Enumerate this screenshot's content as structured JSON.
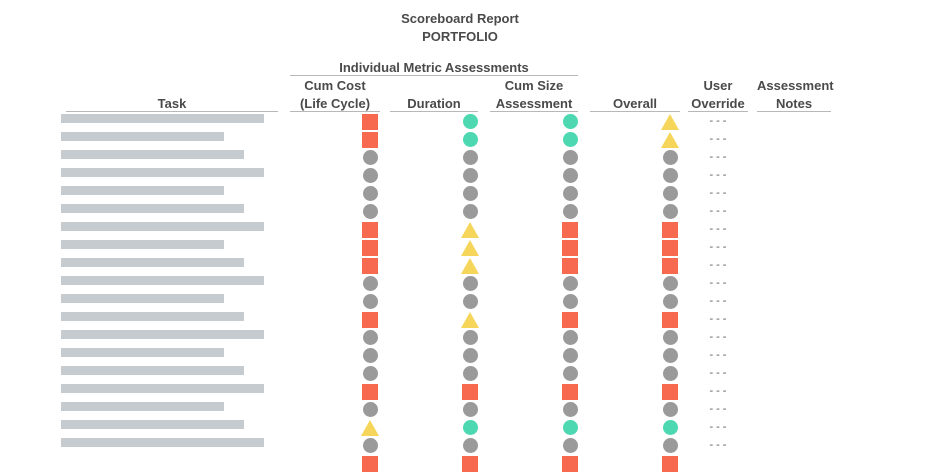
{
  "report": {
    "title": "Scoreboard Report",
    "subtitle": "PORTFOLIO"
  },
  "headers": {
    "group": "Individual Metric Assessments",
    "task": "Task",
    "cum_cost": [
      "Cum Cost",
      "(Life Cycle)"
    ],
    "duration": "Duration",
    "cum_size": [
      "Cum Size",
      "Assessment"
    ],
    "overall": "Overall",
    "user_override": [
      "User",
      "Override"
    ],
    "assessment_notes": [
      "Assessment",
      "Notes"
    ]
  },
  "colors": {
    "red": "#f76a4f",
    "green": "#4dd8b1",
    "gray": "#9a9a9a",
    "yellow": "#f5d65a"
  },
  "override_placeholder": "---",
  "rows": [
    {
      "cost": "red-square",
      "duration": "green-circle",
      "size": "green-circle",
      "overall": "yellow-triangle",
      "override": "---"
    },
    {
      "cost": "red-square",
      "duration": "green-circle",
      "size": "green-circle",
      "overall": "yellow-triangle",
      "override": "---"
    },
    {
      "cost": "gray-circle",
      "duration": "gray-circle",
      "size": "gray-circle",
      "overall": "gray-circle",
      "override": "---"
    },
    {
      "cost": "gray-circle",
      "duration": "gray-circle",
      "size": "gray-circle",
      "overall": "gray-circle",
      "override": "---"
    },
    {
      "cost": "gray-circle",
      "duration": "gray-circle",
      "size": "gray-circle",
      "overall": "gray-circle",
      "override": "---"
    },
    {
      "cost": "gray-circle",
      "duration": "gray-circle",
      "size": "gray-circle",
      "overall": "gray-circle",
      "override": "---"
    },
    {
      "cost": "red-square",
      "duration": "yellow-triangle",
      "size": "red-square",
      "overall": "red-square",
      "override": "---"
    },
    {
      "cost": "red-square",
      "duration": "yellow-triangle",
      "size": "red-square",
      "overall": "red-square",
      "override": "---"
    },
    {
      "cost": "red-square",
      "duration": "yellow-triangle",
      "size": "red-square",
      "overall": "red-square",
      "override": "---"
    },
    {
      "cost": "gray-circle",
      "duration": "gray-circle",
      "size": "gray-circle",
      "overall": "gray-circle",
      "override": "---"
    },
    {
      "cost": "gray-circle",
      "duration": "gray-circle",
      "size": "gray-circle",
      "overall": "gray-circle",
      "override": "---"
    },
    {
      "cost": "red-square",
      "duration": "yellow-triangle",
      "size": "red-square",
      "overall": "red-square",
      "override": "---"
    },
    {
      "cost": "gray-circle",
      "duration": "gray-circle",
      "size": "gray-circle",
      "overall": "gray-circle",
      "override": "---"
    },
    {
      "cost": "gray-circle",
      "duration": "gray-circle",
      "size": "gray-circle",
      "overall": "gray-circle",
      "override": "---"
    },
    {
      "cost": "gray-circle",
      "duration": "gray-circle",
      "size": "gray-circle",
      "overall": "gray-circle",
      "override": "---"
    },
    {
      "cost": "red-square",
      "duration": "red-square",
      "size": "red-square",
      "overall": "red-square",
      "override": "---"
    },
    {
      "cost": "gray-circle",
      "duration": "gray-circle",
      "size": "gray-circle",
      "overall": "gray-circle",
      "override": "---"
    },
    {
      "cost": "yellow-triangle",
      "duration": "green-circle",
      "size": "green-circle",
      "overall": "green-circle",
      "override": "---"
    },
    {
      "cost": "gray-circle",
      "duration": "gray-circle",
      "size": "gray-circle",
      "overall": "gray-circle",
      "override": "---"
    },
    {
      "cost": "red-square",
      "duration": "red-square",
      "size": "red-square",
      "overall": "red-square",
      "override": ""
    }
  ]
}
